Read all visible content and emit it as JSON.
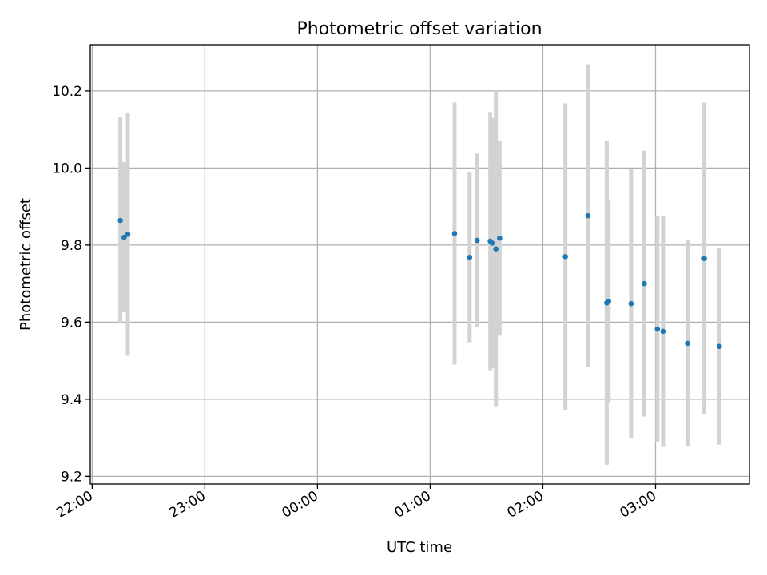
{
  "chart_data": {
    "type": "scatter",
    "title": "Photometric offset variation",
    "xlabel": "UTC time",
    "ylabel": "Photometric offset",
    "grid": true,
    "xlim": [
      "21:59",
      "03:50"
    ],
    "ylim": [
      9.18,
      10.32
    ],
    "xticks": [
      "22:00",
      "23:00",
      "00:00",
      "01:00",
      "02:00",
      "03:00"
    ],
    "yticks": [
      "9.2",
      "9.4",
      "9.6",
      "9.8",
      "10.0",
      "10.2"
    ],
    "colors": {
      "point": "#1f77b4",
      "errorbar": "#d3d3d3",
      "grid": "#b0b0b0"
    },
    "points": [
      {
        "x": "22:15",
        "y": 9.864,
        "err": 0.268
      },
      {
        "x": "22:17",
        "y": 9.82,
        "err": 0.195
      },
      {
        "x": "22:19",
        "y": 9.828,
        "err": 0.315
      },
      {
        "x": "01:13",
        "y": 9.83,
        "err": 0.34
      },
      {
        "x": "01:21",
        "y": 9.768,
        "err": 0.22
      },
      {
        "x": "01:25",
        "y": 9.812,
        "err": 0.225
      },
      {
        "x": "01:32",
        "y": 9.81,
        "err": 0.335
      },
      {
        "x": "01:33",
        "y": 9.805,
        "err": 0.325
      },
      {
        "x": "01:35",
        "y": 9.79,
        "err": 0.41
      },
      {
        "x": "01:37",
        "y": 9.818,
        "err": 0.253
      },
      {
        "x": "02:12",
        "y": 9.77,
        "err": 0.398
      },
      {
        "x": "02:24",
        "y": 9.876,
        "err": 0.393
      },
      {
        "x": "02:34",
        "y": 9.65,
        "err": 0.42
      },
      {
        "x": "02:35",
        "y": 9.654,
        "err": 0.262
      },
      {
        "x": "02:47",
        "y": 9.648,
        "err": 0.35
      },
      {
        "x": "02:54",
        "y": 9.7,
        "err": 0.345
      },
      {
        "x": "03:01",
        "y": 9.582,
        "err": 0.292
      },
      {
        "x": "03:04",
        "y": 9.576,
        "err": 0.3
      },
      {
        "x": "03:17",
        "y": 9.545,
        "err": 0.268
      },
      {
        "x": "03:26",
        "y": 9.765,
        "err": 0.405
      },
      {
        "x": "03:34",
        "y": 9.537,
        "err": 0.255
      }
    ]
  }
}
